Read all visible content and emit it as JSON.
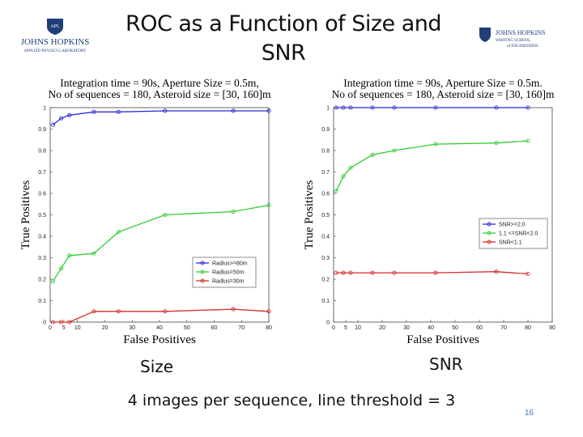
{
  "slide": {
    "title": "ROC as a Function of Size and SNR",
    "logo_left": {
      "lines": [
        "JOHNS HOPKINS",
        "APPLIED PHYSICS LABORATORY"
      ],
      "badge": "APL"
    },
    "logo_right": {
      "lines": [
        "JOHNS HOPKINS",
        "WHITING SCHOOL",
        "of ENGINEERING"
      ]
    },
    "caption_size": "Size",
    "caption_snr": "SNR",
    "subtitle": "4 images per sequence, line threshold = 3",
    "slide_number": "16"
  },
  "chart_data": [
    {
      "type": "line",
      "title_lines": [
        "Integration time = 90s, Aperture Size = 0.5m,",
        "No of sequences = 180, Asteroid size = [30, 160]m"
      ],
      "xlabel": "False Positives",
      "ylabel": "True Positives",
      "xlim": [
        0,
        80
      ],
      "ylim": [
        0,
        1
      ],
      "xticks": [
        0,
        5,
        10,
        20,
        30,
        40,
        50,
        60,
        70,
        80
      ],
      "yticks": [
        0,
        0.1,
        0.2,
        0.3,
        0.4,
        0.5,
        0.6,
        0.7,
        0.8,
        0.9,
        1
      ],
      "legend_position": "lower-right",
      "series": [
        {
          "name": "Radius>=80m",
          "color": "#2b2bd6",
          "x": [
            1,
            4,
            7,
            16,
            25,
            42,
            67,
            80
          ],
          "y": [
            0.92,
            0.95,
            0.965,
            0.98,
            0.98,
            0.985,
            0.985,
            0.985
          ]
        },
        {
          "name": "Radius=50m",
          "color": "#33cc33",
          "x": [
            1,
            4,
            7,
            16,
            25,
            42,
            67,
            80
          ],
          "y": [
            0.19,
            0.25,
            0.31,
            0.32,
            0.42,
            0.5,
            0.515,
            0.545
          ]
        },
        {
          "name": "Radius=30m",
          "color": "#d62b2b",
          "x": [
            1,
            4,
            7,
            16,
            25,
            42,
            67,
            80
          ],
          "y": [
            0.0,
            0.0,
            0.0,
            0.05,
            0.05,
            0.05,
            0.06,
            0.05
          ]
        }
      ]
    },
    {
      "type": "line",
      "title_lines": [
        "Integration time = 90s, Aperture Size = 0.5m.",
        "No of sequences = 180, Asteroid size = [30, 160]m"
      ],
      "xlabel": "False Positives",
      "ylabel": "True Positives",
      "xlim": [
        0,
        90
      ],
      "ylim": [
        0,
        1
      ],
      "xticks": [
        0,
        5,
        10,
        20,
        30,
        40,
        50,
        60,
        70,
        80,
        90
      ],
      "yticks": [
        0,
        0.1,
        0.2,
        0.3,
        0.4,
        0.5,
        0.6,
        0.7,
        0.8,
        0.9,
        1
      ],
      "legend_position": "right",
      "series": [
        {
          "name": "SNR>=2.0",
          "color": "#2b2bd6",
          "x": [
            1,
            4,
            7,
            16,
            25,
            42,
            67,
            80
          ],
          "y": [
            1.0,
            1.0,
            1.0,
            1.0,
            1.0,
            1.0,
            1.0,
            1.0
          ]
        },
        {
          "name": "1.1 <=SNR<2.0",
          "color": "#33cc33",
          "x": [
            1,
            4,
            7,
            16,
            25,
            42,
            67,
            80
          ],
          "y": [
            0.61,
            0.68,
            0.72,
            0.78,
            0.8,
            0.83,
            0.835,
            0.845
          ]
        },
        {
          "name": "SNR<1.1",
          "color": "#d62b2b",
          "x": [
            1,
            4,
            7,
            16,
            25,
            42,
            67,
            80
          ],
          "y": [
            0.23,
            0.23,
            0.23,
            0.23,
            0.23,
            0.23,
            0.235,
            0.225
          ]
        }
      ]
    }
  ]
}
